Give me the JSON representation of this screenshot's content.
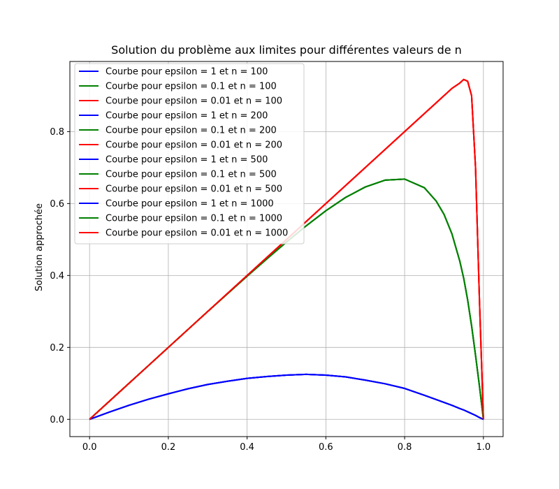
{
  "chart_data": {
    "type": "line",
    "title": "Solution du problème aux limites pour différentes valeurs de n",
    "xlabel": "",
    "ylabel": "Solution approchée",
    "xlim": [
      -0.05,
      1.05
    ],
    "ylim": [
      -0.048,
      0.995
    ],
    "x_ticks": [
      0.0,
      0.2,
      0.4,
      0.6,
      0.8,
      1.0
    ],
    "x_tick_labels": [
      "0.0",
      "0.2",
      "0.4",
      "0.6",
      "0.8",
      "1.0"
    ],
    "y_ticks": [
      0.0,
      0.2,
      0.4,
      0.6,
      0.8
    ],
    "y_tick_labels": [
      "0.0",
      "0.2",
      "0.4",
      "0.6",
      "0.8"
    ],
    "grid": true,
    "legend_position": "top-left",
    "x": [
      0.0,
      0.05,
      0.1,
      0.15,
      0.2,
      0.25,
      0.3,
      0.35,
      0.4,
      0.45,
      0.5,
      0.55,
      0.6,
      0.65,
      0.7,
      0.75,
      0.8,
      0.85,
      0.88,
      0.9,
      0.92,
      0.94,
      0.95,
      0.96,
      0.97,
      0.98,
      0.99,
      1.0
    ],
    "series": [
      {
        "name": "Courbe pour epsilon = 1 et n = 100",
        "color": "#0000ff",
        "values": [
          0.0,
          0.02,
          0.039,
          0.056,
          0.071,
          0.085,
          0.097,
          0.106,
          0.114,
          0.119,
          0.123,
          0.125,
          0.123,
          0.118,
          0.109,
          0.099,
          0.086,
          0.067,
          0.055,
          0.047,
          0.039,
          0.03,
          0.026,
          0.021,
          0.016,
          0.011,
          0.005,
          0.0
        ]
      },
      {
        "name": "Courbe pour epsilon = 0.1 et n = 100",
        "color": "#008000",
        "values": [
          0.0,
          0.05,
          0.1,
          0.15,
          0.2,
          0.25,
          0.3,
          0.349,
          0.398,
          0.446,
          0.493,
          0.538,
          0.58,
          0.617,
          0.646,
          0.665,
          0.668,
          0.644,
          0.607,
          0.57,
          0.516,
          0.44,
          0.392,
          0.332,
          0.26,
          0.178,
          0.092,
          0.0
        ]
      },
      {
        "name": "Courbe pour epsilon = 0.01 et n = 100",
        "color": "#ff0000",
        "values": [
          0.0,
          0.05,
          0.1,
          0.15,
          0.2,
          0.25,
          0.3,
          0.35,
          0.4,
          0.45,
          0.5,
          0.55,
          0.6,
          0.65,
          0.7,
          0.75,
          0.8,
          0.85,
          0.88,
          0.9,
          0.92,
          0.935,
          0.945,
          0.94,
          0.9,
          0.7,
          0.33,
          0.0
        ]
      },
      {
        "name": "Courbe pour epsilon = 1 et n = 200",
        "color": "#0000ff",
        "values": [
          0.0,
          0.02,
          0.039,
          0.056,
          0.071,
          0.085,
          0.097,
          0.106,
          0.114,
          0.119,
          0.123,
          0.125,
          0.123,
          0.118,
          0.109,
          0.099,
          0.086,
          0.067,
          0.055,
          0.047,
          0.039,
          0.03,
          0.026,
          0.021,
          0.016,
          0.011,
          0.005,
          0.0
        ]
      },
      {
        "name": "Courbe pour epsilon = 0.1 et n = 200",
        "color": "#008000",
        "values": [
          0.0,
          0.05,
          0.1,
          0.15,
          0.2,
          0.25,
          0.3,
          0.349,
          0.398,
          0.446,
          0.493,
          0.538,
          0.58,
          0.617,
          0.646,
          0.665,
          0.668,
          0.644,
          0.607,
          0.57,
          0.516,
          0.44,
          0.392,
          0.332,
          0.26,
          0.178,
          0.092,
          0.0
        ]
      },
      {
        "name": "Courbe pour epsilon = 0.01 et n = 200",
        "color": "#ff0000",
        "values": [
          0.0,
          0.05,
          0.1,
          0.15,
          0.2,
          0.25,
          0.3,
          0.35,
          0.4,
          0.45,
          0.5,
          0.55,
          0.6,
          0.65,
          0.7,
          0.75,
          0.8,
          0.85,
          0.88,
          0.9,
          0.92,
          0.935,
          0.945,
          0.94,
          0.9,
          0.7,
          0.33,
          0.0
        ]
      },
      {
        "name": "Courbe pour epsilon = 1 et n = 500",
        "color": "#0000ff",
        "values": [
          0.0,
          0.02,
          0.039,
          0.056,
          0.071,
          0.085,
          0.097,
          0.106,
          0.114,
          0.119,
          0.123,
          0.125,
          0.123,
          0.118,
          0.109,
          0.099,
          0.086,
          0.067,
          0.055,
          0.047,
          0.039,
          0.03,
          0.026,
          0.021,
          0.016,
          0.011,
          0.005,
          0.0
        ]
      },
      {
        "name": "Courbe pour epsilon = 0.1 et n = 500",
        "color": "#008000",
        "values": [
          0.0,
          0.05,
          0.1,
          0.15,
          0.2,
          0.25,
          0.3,
          0.349,
          0.398,
          0.446,
          0.493,
          0.538,
          0.58,
          0.617,
          0.646,
          0.665,
          0.668,
          0.644,
          0.607,
          0.57,
          0.516,
          0.44,
          0.392,
          0.332,
          0.26,
          0.178,
          0.092,
          0.0
        ]
      },
      {
        "name": "Courbe pour epsilon = 0.01 et n = 500",
        "color": "#ff0000",
        "values": [
          0.0,
          0.05,
          0.1,
          0.15,
          0.2,
          0.25,
          0.3,
          0.35,
          0.4,
          0.45,
          0.5,
          0.55,
          0.6,
          0.65,
          0.7,
          0.75,
          0.8,
          0.85,
          0.88,
          0.9,
          0.92,
          0.935,
          0.945,
          0.94,
          0.9,
          0.7,
          0.33,
          0.0
        ]
      },
      {
        "name": "Courbe pour epsilon = 1 et n = 1000",
        "color": "#0000ff",
        "values": [
          0.0,
          0.02,
          0.039,
          0.056,
          0.071,
          0.085,
          0.097,
          0.106,
          0.114,
          0.119,
          0.123,
          0.125,
          0.123,
          0.118,
          0.109,
          0.099,
          0.086,
          0.067,
          0.055,
          0.047,
          0.039,
          0.03,
          0.026,
          0.021,
          0.016,
          0.011,
          0.005,
          0.0
        ]
      },
      {
        "name": "Courbe pour epsilon = 0.1 et n = 1000",
        "color": "#008000",
        "values": [
          0.0,
          0.05,
          0.1,
          0.15,
          0.2,
          0.25,
          0.3,
          0.349,
          0.398,
          0.446,
          0.493,
          0.538,
          0.58,
          0.617,
          0.646,
          0.665,
          0.668,
          0.644,
          0.607,
          0.57,
          0.516,
          0.44,
          0.392,
          0.332,
          0.26,
          0.178,
          0.092,
          0.0
        ]
      },
      {
        "name": "Courbe pour epsilon = 0.01 et n = 1000",
        "color": "#ff0000",
        "values": [
          0.0,
          0.05,
          0.1,
          0.15,
          0.2,
          0.25,
          0.3,
          0.35,
          0.4,
          0.45,
          0.5,
          0.55,
          0.6,
          0.65,
          0.7,
          0.75,
          0.8,
          0.85,
          0.88,
          0.9,
          0.92,
          0.935,
          0.945,
          0.94,
          0.9,
          0.7,
          0.33,
          0.0
        ]
      }
    ]
  }
}
